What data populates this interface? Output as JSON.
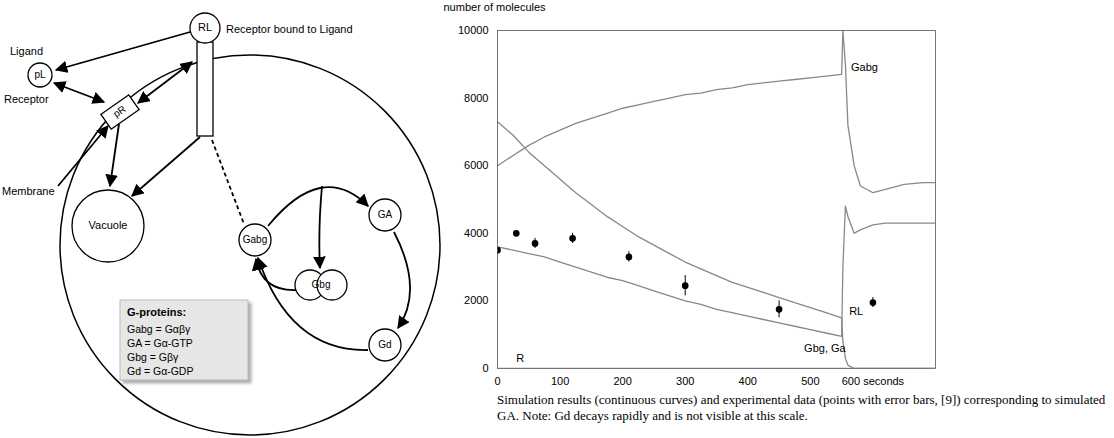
{
  "diagram": {
    "nodes": [
      {
        "id": "pL",
        "label": "pL",
        "caption": "Ligand"
      },
      {
        "id": "pR",
        "label": "pR",
        "caption": "Receptor"
      },
      {
        "id": "RL",
        "label": "RL",
        "caption": "Receptor bound to Ligand"
      },
      {
        "id": "Vacuole",
        "label": "Vacuole"
      },
      {
        "id": "Gabg",
        "label": "Gabg"
      },
      {
        "id": "GA",
        "label": "GA"
      },
      {
        "id": "Gbg",
        "label": "Gbg"
      },
      {
        "id": "Gd",
        "label": "Gd"
      }
    ],
    "membrane_label": "Membrane",
    "key_box": {
      "title": "G-proteins:",
      "items": [
        "Gabg = Gαβγ",
        "GA = Gα-GTP",
        "Gbg = Gβγ",
        "Gd = Gα-GDP"
      ]
    }
  },
  "chart_data": {
    "type": "line",
    "x": [
      0,
      25,
      50,
      75,
      100,
      125,
      150,
      175,
      200,
      225,
      250,
      275,
      300,
      325,
      350,
      375,
      400,
      425,
      450,
      475,
      500,
      525,
      550,
      552,
      556,
      560,
      570,
      580,
      600,
      620,
      650,
      680,
      700
    ],
    "xlim": [
      0,
      700
    ],
    "xticks": [
      0,
      100,
      200,
      300,
      400,
      500,
      {
        "value": 600,
        "label": "600 seconds"
      }
    ],
    "ylabel": "number of molecules",
    "ylim": [
      0,
      10000
    ],
    "yticks": [
      0,
      2000,
      4000,
      6000,
      8000,
      10000
    ],
    "grid": false,
    "series": [
      {
        "name": "Gabg",
        "color": "#888888",
        "values": [
          6000,
          6300,
          6600,
          6850,
          7050,
          7250,
          7400,
          7550,
          7700,
          7800,
          7900,
          8000,
          8100,
          8150,
          8250,
          8300,
          8400,
          8450,
          8500,
          8550,
          8600,
          8650,
          8700,
          10000,
          9000,
          7200,
          6000,
          5400,
          5200,
          5300,
          5450,
          5500,
          5500
        ]
      },
      {
        "name": "RL",
        "color": "#888888",
        "values": [
          7300,
          6900,
          6400,
          6000,
          5600,
          5200,
          4850,
          4500,
          4200,
          3900,
          3650,
          3400,
          3150,
          2950,
          2750,
          2550,
          2400,
          2250,
          2100,
          1950,
          1800,
          1650,
          1500,
          800,
          300,
          100,
          0,
          0,
          0,
          0,
          0,
          0,
          0
        ]
      },
      {
        "name": "Gbg, Ga",
        "color": "#888888",
        "values": [
          3600,
          3500,
          3400,
          3300,
          3150,
          3000,
          2850,
          2700,
          2600,
          2450,
          2300,
          2150,
          2000,
          1900,
          1750,
          1650,
          1550,
          1450,
          1350,
          1250,
          1150,
          1050,
          950,
          3000,
          4800,
          4500,
          4000,
          4100,
          4250,
          4300,
          4300,
          4300,
          4300
        ]
      },
      {
        "name": "R",
        "color": "#888888",
        "values": [
          0,
          0,
          0,
          0,
          0,
          0,
          0,
          0,
          0,
          0,
          0,
          0,
          0,
          0,
          0,
          0,
          0,
          0,
          0,
          0,
          0,
          0,
          0,
          0,
          0,
          0,
          0,
          0,
          0,
          0,
          0,
          0,
          0
        ]
      }
    ],
    "experimental": {
      "type": "scatter",
      "color": "#000000",
      "marker": "circle",
      "x": [
        0,
        30,
        60,
        120,
        210,
        300,
        450,
        600
      ],
      "values": [
        3500,
        4000,
        3700,
        3850,
        3300,
        2450,
        1750,
        1950
      ],
      "error": [
        null,
        null,
        150,
        150,
        150,
        300,
        250,
        150
      ]
    },
    "annotations": [
      {
        "series": "Gabg",
        "x": 565,
        "y": 8900
      },
      {
        "series": "RL",
        "x": 562,
        "y": 1700
      },
      {
        "series": "Gbg, Ga",
        "x": 490,
        "y": 600
      },
      {
        "series": "R",
        "x": 30,
        "y": 300
      }
    ],
    "caption": "Simulation results (continuous curves) and experimental data (points with error bars, [9]) corresponding to simulated GA. Note: Gd decays rapidly and is not visible at this scale."
  }
}
